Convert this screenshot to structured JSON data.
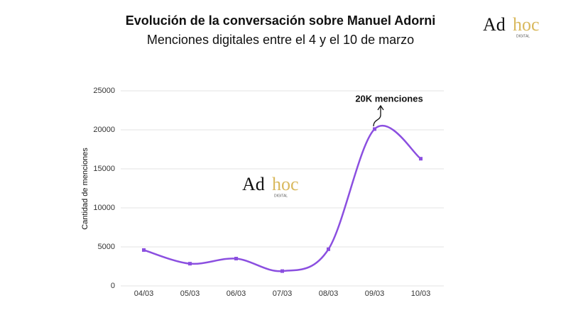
{
  "chart_data": {
    "type": "line",
    "title": "Evolución de la conversación sobre Manuel Adorni",
    "subtitle": "Menciones digitales entre el 4 y el 10 de marzo",
    "y_label": "Cantidad de menciones",
    "annotation": "20K menciones",
    "categories": [
      "04/03",
      "05/03",
      "06/03",
      "07/03",
      "08/03",
      "09/03",
      "10/03"
    ],
    "values": [
      4600,
      2850,
      3500,
      1900,
      4700,
      20100,
      16300
    ],
    "color": "#8b4fe0",
    "ylim": [
      0,
      25000
    ],
    "yticks": [
      0,
      5000,
      10000,
      15000,
      20000,
      25000
    ],
    "grid": true
  },
  "logo": {
    "main": "Ad",
    "accent": "hoc",
    "sub": "DIGITAL"
  }
}
